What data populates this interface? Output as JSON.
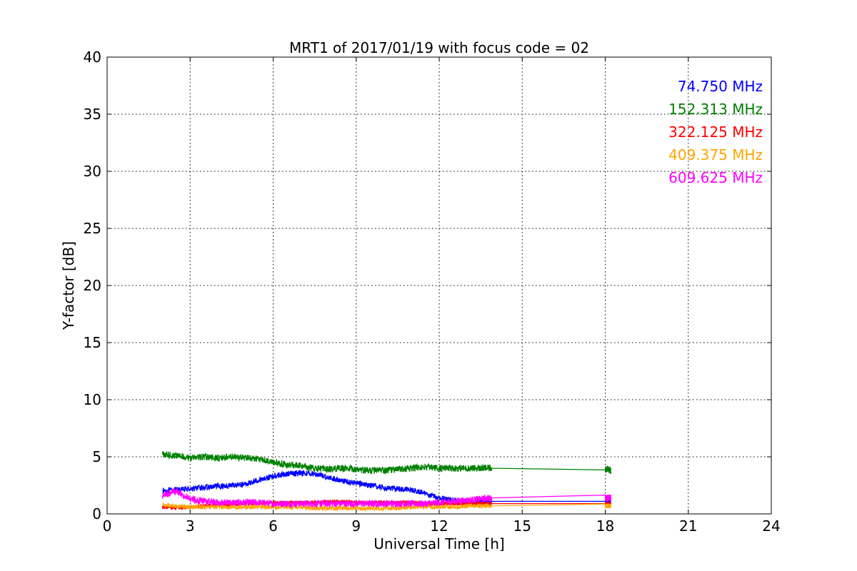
{
  "chart_data": {
    "type": "line",
    "title": "MRT1 of 2017/01/19 with focus code = 02",
    "xlabel": "Universal Time [h]",
    "ylabel": "Y-factor [dB]",
    "xlim": [
      0,
      24
    ],
    "ylim": [
      0,
      40
    ],
    "xticks": [
      0,
      3,
      6,
      9,
      12,
      15,
      18,
      21,
      24
    ],
    "yticks": [
      0,
      5,
      10,
      15,
      20,
      25,
      30,
      35,
      40
    ],
    "xtick_labels": [
      "0",
      "3",
      "6",
      "9",
      "12",
      "15",
      "18",
      "21",
      "24"
    ],
    "ytick_labels": [
      "0",
      "5",
      "10",
      "15",
      "20",
      "25",
      "30",
      "35",
      "40"
    ],
    "grid": true,
    "legend_position": "top-right",
    "series": [
      {
        "name": "74.750 MHz",
        "color": "#0000ff",
        "noise": 0.25,
        "x": [
          2.0,
          2.5,
          3.0,
          3.5,
          4.0,
          4.5,
          5.0,
          5.5,
          6.0,
          6.5,
          7.0,
          7.5,
          8.0,
          8.5,
          9.0,
          9.5,
          10.0,
          10.5,
          11.0,
          11.5,
          12.0,
          12.5,
          13.0,
          13.5,
          13.9,
          18.0,
          18.2
        ],
        "y": [
          2.0,
          2.1,
          2.2,
          2.3,
          2.4,
          2.5,
          2.6,
          3.0,
          3.3,
          3.5,
          3.6,
          3.5,
          3.2,
          2.9,
          2.7,
          2.5,
          2.3,
          2.2,
          2.1,
          1.8,
          1.4,
          1.2,
          1.1,
          1.1,
          1.1,
          1.1,
          1.1
        ]
      },
      {
        "name": "152.313 MHz",
        "color": "#008000",
        "noise": 0.3,
        "x": [
          2.0,
          2.5,
          3.0,
          3.5,
          4.0,
          4.5,
          5.0,
          5.5,
          6.0,
          6.5,
          7.0,
          7.5,
          8.0,
          8.5,
          9.0,
          9.5,
          10.0,
          10.5,
          11.0,
          11.5,
          12.0,
          12.5,
          13.0,
          13.5,
          13.9,
          18.0,
          18.2
        ],
        "y": [
          5.2,
          5.1,
          4.9,
          5.0,
          4.9,
          5.0,
          4.9,
          4.8,
          4.5,
          4.3,
          4.2,
          4.0,
          3.9,
          4.0,
          3.9,
          3.8,
          3.8,
          3.9,
          4.0,
          4.1,
          4.0,
          4.0,
          4.0,
          4.0,
          4.0,
          4.0,
          3.8
        ]
      },
      {
        "name": "322.125 MHz",
        "color": "#ff0000",
        "noise": 0.15,
        "x": [
          2.0,
          2.5,
          3.0,
          3.5,
          4.0,
          4.5,
          5.0,
          5.5,
          6.0,
          6.5,
          7.0,
          7.5,
          8.0,
          8.5,
          9.0,
          9.5,
          10.0,
          10.5,
          11.0,
          11.5,
          12.0,
          12.5,
          13.0,
          13.5,
          13.9,
          18.0,
          18.2
        ],
        "y": [
          0.6,
          0.5,
          0.6,
          0.7,
          0.8,
          0.8,
          0.9,
          0.9,
          1.0,
          1.0,
          1.0,
          1.0,
          1.1,
          1.1,
          1.0,
          1.0,
          1.0,
          1.0,
          1.0,
          0.9,
          0.9,
          0.9,
          0.9,
          0.9,
          0.9,
          0.9,
          0.9
        ]
      },
      {
        "name": "409.375 MHz",
        "color": "#ffa500",
        "noise": 0.2,
        "x": [
          2.0,
          2.5,
          3.0,
          3.5,
          4.0,
          4.5,
          5.0,
          5.5,
          6.0,
          6.5,
          7.0,
          7.5,
          8.0,
          8.5,
          9.0,
          9.5,
          10.0,
          10.5,
          11.0,
          11.5,
          12.0,
          12.5,
          13.0,
          13.5,
          13.9,
          18.0,
          18.2
        ],
        "y": [
          0.8,
          0.7,
          0.6,
          0.6,
          0.6,
          0.6,
          0.6,
          0.6,
          0.6,
          0.6,
          0.6,
          0.5,
          0.5,
          0.5,
          0.5,
          0.5,
          0.5,
          0.5,
          0.6,
          0.6,
          0.6,
          0.6,
          0.7,
          0.7,
          0.7,
          0.7,
          0.7
        ]
      },
      {
        "name": "609.625 MHz",
        "color": "#ff00ff",
        "noise": 0.3,
        "x": [
          2.0,
          2.5,
          3.0,
          3.5,
          4.0,
          4.5,
          5.0,
          5.5,
          6.0,
          6.5,
          7.0,
          7.5,
          8.0,
          8.5,
          9.0,
          9.5,
          10.0,
          10.5,
          11.0,
          11.5,
          12.0,
          12.5,
          13.0,
          13.5,
          13.9,
          18.0,
          18.2
        ],
        "y": [
          1.6,
          2.0,
          1.3,
          1.1,
          1.0,
          1.0,
          1.0,
          1.0,
          0.9,
          0.9,
          0.9,
          0.9,
          0.9,
          0.9,
          0.9,
          0.9,
          0.9,
          0.9,
          0.9,
          0.9,
          1.0,
          1.1,
          1.2,
          1.3,
          1.4,
          1.4,
          1.4
        ]
      }
    ]
  }
}
